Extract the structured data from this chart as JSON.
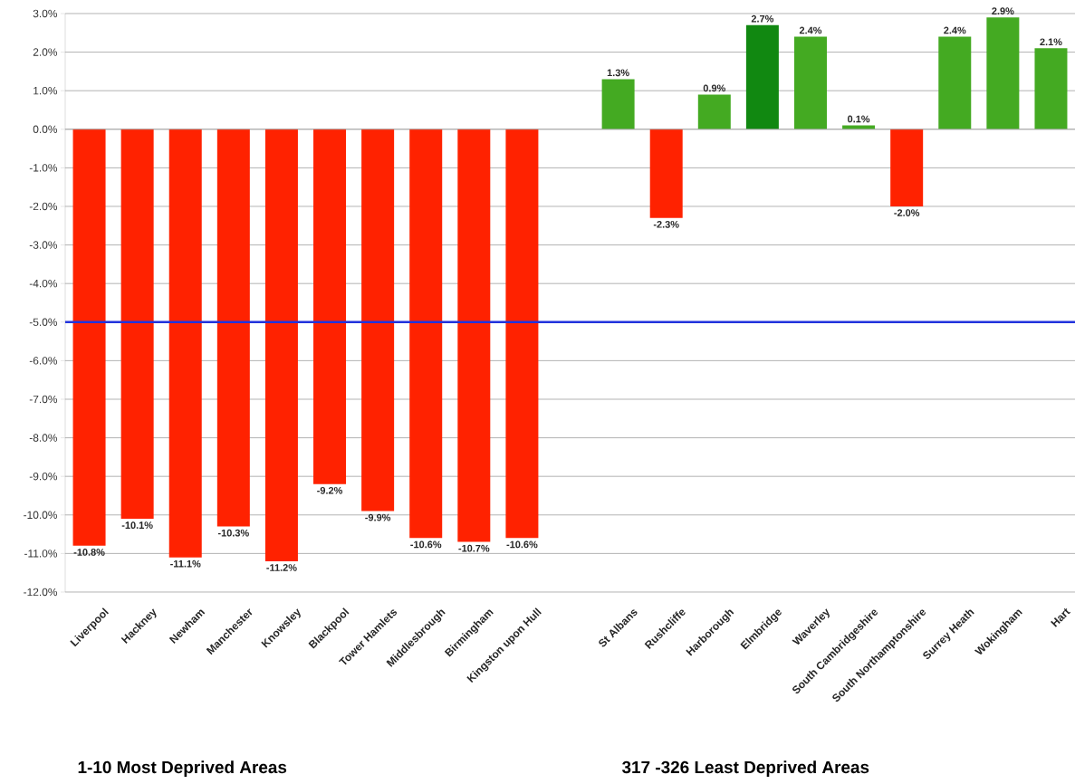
{
  "chart_data": {
    "type": "bar",
    "categories": [
      "Liverpool",
      "Hackney",
      "Newham",
      "Manchester",
      "Knowsley",
      "Blackpool",
      "Tower Hamlets",
      "Middlesbrough",
      "Birmingham",
      "Kingston upon Hull",
      null,
      "St Albans",
      "Rushcliffe",
      "Harborough",
      "Elmbridge",
      "Waverley",
      "South Cambridgeshire",
      "South Northamptonshire",
      "Surrey Heath",
      "Wokingham",
      "Hart"
    ],
    "values": [
      -10.8,
      -10.1,
      -11.1,
      -10.3,
      -11.2,
      -9.2,
      -9.9,
      -10.6,
      -10.7,
      -10.6,
      null,
      1.3,
      -2.3,
      0.9,
      2.7,
      2.4,
      0.1,
      -2.0,
      2.4,
      2.9,
      2.1
    ],
    "value_labels": [
      "-10.8%",
      "-10.1%",
      "-11.1%",
      "-10.3%",
      "-11.2%",
      "-9.2%",
      "-9.9%",
      "-10.6%",
      "-10.7%",
      "-10.6%",
      null,
      "1.3%",
      "-2.3%",
      "0.9%",
      "2.7%",
      "2.4%",
      "0.1%",
      "-2.0%",
      "2.4%",
      "2.9%",
      "2.1%"
    ],
    "colors": [
      "#ff2200",
      "#ff2200",
      "#ff2200",
      "#ff2200",
      "#ff2200",
      "#ff2200",
      "#ff2200",
      "#ff2200",
      "#ff2200",
      "#ff2200",
      null,
      "#44aa22",
      "#ff2200",
      "#44aa22",
      "#118811",
      "#44aa22",
      "#44aa22",
      "#ff2200",
      "#44aa22",
      "#44aa22",
      "#44aa22"
    ],
    "ylim": [
      -12,
      3
    ],
    "yticks": [
      {
        "value": 3,
        "label": "3.0%"
      },
      {
        "value": 2,
        "label": "2.0%"
      },
      {
        "value": 1,
        "label": "1.0%"
      },
      {
        "value": 0,
        "label": "0.0%"
      },
      {
        "value": -1,
        "label": "-1.0%"
      },
      {
        "value": -2,
        "label": "-2.0%"
      },
      {
        "value": -3,
        "label": "-3.0%"
      },
      {
        "value": -4,
        "label": "-4.0%"
      },
      {
        "value": -5,
        "label": "-5.0%"
      },
      {
        "value": -6,
        "label": "-6.0%"
      },
      {
        "value": -7,
        "label": "-7.0%"
      },
      {
        "value": -8,
        "label": "-8.0%"
      },
      {
        "value": -9,
        "label": "-9.0%"
      },
      {
        "value": -10,
        "label": "-10.0%"
      },
      {
        "value": -11,
        "label": "-11.0%"
      },
      {
        "value": -12,
        "label": "-12.0%"
      }
    ],
    "grid": "y",
    "ref_lines": [
      {
        "axis": "y",
        "value": -5.0,
        "color": "#2233dd"
      }
    ],
    "annotations": [
      "1-10 Most Deprived Areas",
      "317 -326 Least Deprived Areas"
    ]
  }
}
